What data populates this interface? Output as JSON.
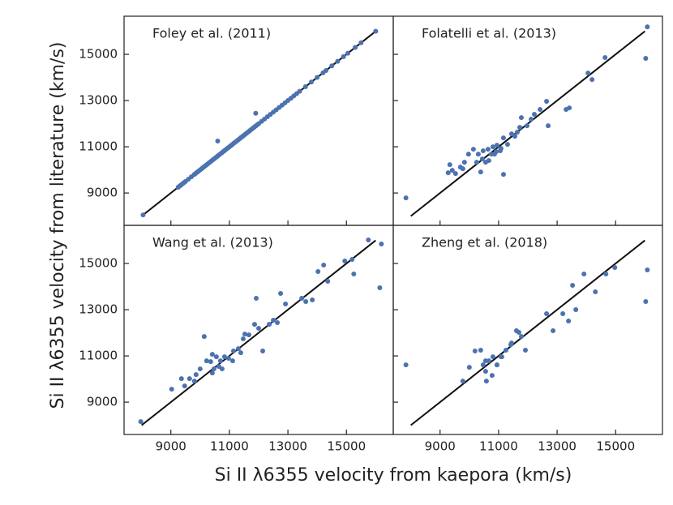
{
  "xlabel": "Si II λ6355 velocity from kaepora (km/s)",
  "ylabel": "Si II λ6355 velocity from literature (km/s)",
  "chart_data": [
    {
      "type": "scatter",
      "title": "Foley et al. (2011)",
      "color": "#4c72b0",
      "x": [
        8050,
        9250,
        9300,
        9350,
        9400,
        9450,
        9500,
        9600,
        9700,
        9800,
        9850,
        9900,
        9950,
        10000,
        10050,
        10100,
        10150,
        10200,
        10250,
        10300,
        10350,
        10400,
        10450,
        10500,
        10550,
        10600,
        10650,
        10700,
        10750,
        10800,
        10850,
        10900,
        10950,
        11000,
        11050,
        11100,
        11150,
        11200,
        11250,
        11300,
        11350,
        11400,
        11450,
        11500,
        11550,
        11600,
        11650,
        11700,
        11750,
        11800,
        11850,
        11900,
        11950,
        12000,
        12100,
        12200,
        12300,
        12400,
        12500,
        12600,
        12700,
        12800,
        12900,
        13000,
        13100,
        13200,
        13300,
        13400,
        13600,
        13800,
        14000,
        14200,
        14300,
        14500,
        14700,
        14900,
        15050,
        15300,
        15500,
        16000,
        10600,
        11900
      ],
      "y": [
        8050,
        9250,
        9300,
        9350,
        9400,
        9450,
        9500,
        9600,
        9700,
        9800,
        9850,
        9900,
        9950,
        10000,
        10050,
        10100,
        10150,
        10200,
        10250,
        10300,
        10350,
        10400,
        10450,
        10500,
        10550,
        10600,
        10650,
        10700,
        10750,
        10800,
        10850,
        10900,
        10950,
        11000,
        11050,
        11100,
        11150,
        11200,
        11250,
        11300,
        11350,
        11400,
        11450,
        11500,
        11550,
        11600,
        11650,
        11700,
        11750,
        11800,
        11850,
        11900,
        11950,
        12000,
        12100,
        12200,
        12300,
        12400,
        12500,
        12600,
        12700,
        12800,
        12900,
        13000,
        13100,
        13200,
        13300,
        13400,
        13600,
        13800,
        14000,
        14200,
        14300,
        14500,
        14700,
        14900,
        15050,
        15300,
        15500,
        16000,
        11250,
        12450
      ],
      "reference_line": {
        "x": [
          8000,
          16000
        ],
        "y": [
          8000,
          16000
        ]
      },
      "xlim": [
        7400,
        16600
      ],
      "ylim": [
        7600,
        16650
      ],
      "xticks": [
        9000,
        11000,
        13000,
        15000
      ],
      "yticks": [
        9000,
        11000,
        13000,
        15000
      ]
    },
    {
      "type": "scatter",
      "title": "Folatelli et al. (2013)",
      "color": "#4c72b0",
      "x": [
        7833,
        16083,
        16028,
        14639,
        14056,
        14194,
        13306,
        13417,
        12639,
        12417,
        12222,
        12111,
        11972,
        11722,
        11444,
        11639,
        12694,
        11306,
        11167,
        10944,
        10806,
        10639,
        10472,
        10306,
        10139,
        9972,
        9833,
        9694,
        9417,
        9333,
        9278,
        9528,
        9778,
        10444,
        10556,
        10667,
        10861,
        10250,
        10389,
        11167,
        11056,
        10917,
        10750,
        11083,
        11556,
        11778
      ],
      "y": [
        8790,
        16190,
        14825,
        14860,
        14190,
        13910,
        12614,
        12684,
        12965,
        12614,
        12404,
        12193,
        11912,
        11842,
        11561,
        11632,
        11912,
        11105,
        11386,
        11070,
        11000,
        10895,
        10825,
        10684,
        10895,
        10684,
        10333,
        10123,
        9982,
        10228,
        9877,
        9842,
        10053,
        10474,
        10333,
        10404,
        10684,
        10333,
        9912,
        9807,
        10825,
        10789,
        10684,
        10930,
        11456,
        12263
      ],
      "reference_line": {
        "x": [
          8000,
          16000
        ],
        "y": [
          8000,
          16000
        ]
      },
      "xlim": [
        7400,
        16600
      ],
      "ylim": [
        7600,
        16650
      ],
      "xticks": [
        9000,
        11000,
        13000,
        15000
      ],
      "yticks": [
        9000,
        11000,
        13000,
        15000
      ]
    },
    {
      "type": "scatter",
      "title": "Wang et al. (2013)",
      "color": "#4c72b0",
      "x": [
        7972,
        16194,
        16139,
        15750,
        15194,
        14944,
        15250,
        14361,
        14222,
        14028,
        13833,
        13611,
        13472,
        12750,
        12500,
        12639,
        12361,
        12139,
        11917,
        11861,
        11667,
        11528,
        11472,
        11306,
        11139,
        10972,
        10833,
        10694,
        10639,
        10472,
        10361,
        10222,
        10139,
        10000,
        9861,
        9806,
        9639,
        9472,
        9361,
        9028,
        10417,
        10750,
        11111,
        11389,
        12000,
        12917,
        10417,
        10556
      ],
      "y": [
        8158,
        15842,
        13947,
        16018,
        15175,
        15105,
        14544,
        14228,
        14930,
        14649,
        13421,
        13351,
        13491,
        13702,
        12544,
        12439,
        12368,
        11211,
        13491,
        12368,
        11912,
        11947,
        11737,
        11316,
        11211,
        10895,
        10965,
        10789,
        10544,
        10439,
        10754,
        10789,
        11842,
        10439,
        10193,
        9912,
        10018,
        9702,
        10018,
        9561,
        10263,
        10439,
        10789,
        11140,
        12193,
        13246,
        11070,
        10965
      ],
      "reference_line": {
        "x": [
          8000,
          16000
        ],
        "y": [
          8000,
          16000
        ]
      },
      "xlim": [
        7400,
        16600
      ],
      "ylim": [
        7600,
        16650
      ],
      "xticks": [
        9000,
        11000,
        13000,
        15000
      ],
      "yticks": [
        9000,
        11000,
        13000,
        15000
      ]
    },
    {
      "type": "scatter",
      "title": "Zheng et al. (2018)",
      "color": "#4c72b0",
      "x": [
        7833,
        16083,
        16028,
        14972,
        14667,
        14306,
        13917,
        13528,
        13639,
        13389,
        13194,
        12639,
        12861,
        11917,
        11778,
        11611,
        11444,
        11250,
        11111,
        10944,
        10806,
        10556,
        10389,
        10194,
        10000,
        9778,
        10583,
        11083,
        11694,
        10472,
        10778,
        10556,
        10667,
        10944,
        11417
      ],
      "y": [
        10614,
        14719,
        13351,
        14825,
        14544,
        13772,
        14544,
        14053,
        13000,
        12509,
        12825,
        12825,
        12088,
        11246,
        11842,
        12088,
        11561,
        11246,
        10965,
        10614,
        10965,
        10789,
        11246,
        11211,
        10509,
        9912,
        9912,
        10965,
        12018,
        10614,
        10158,
        10333,
        10789,
        10614,
        11491
      ],
      "reference_line": {
        "x": [
          8000,
          16000
        ],
        "y": [
          8000,
          16000
        ]
      },
      "xlim": [
        7400,
        16600
      ],
      "ylim": [
        7600,
        16650
      ],
      "xticks": [
        9000,
        11000,
        13000,
        15000
      ],
      "yticks": [
        9000,
        11000,
        13000,
        15000
      ]
    }
  ]
}
